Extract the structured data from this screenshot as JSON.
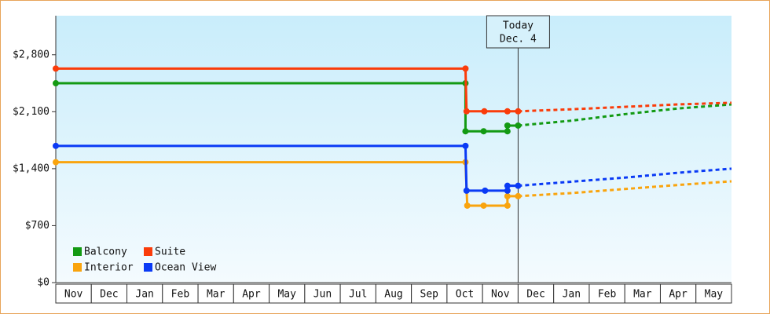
{
  "chart_data": {
    "type": "line",
    "categories": [
      "Nov",
      "Dec",
      "Jan",
      "Feb",
      "Mar",
      "Apr",
      "May",
      "Jun",
      "Jul",
      "Aug",
      "Sep",
      "Oct",
      "Nov",
      "Dec",
      "Jan",
      "Feb",
      "Mar",
      "Apr",
      "May"
    ],
    "xlim": [
      0,
      19
    ],
    "ylim": [
      0,
      3280
    ],
    "yticks": [
      {
        "value": 0,
        "label": "$0"
      },
      {
        "value": 700,
        "label": "$700"
      },
      {
        "value": 1400,
        "label": "$1,400"
      },
      {
        "value": 2100,
        "label": "$2,100"
      },
      {
        "value": 2800,
        "label": "$2,800"
      }
    ],
    "today": {
      "x": 13.0,
      "label": "Today",
      "date": "Dec. 4"
    },
    "legend": "bottom-left",
    "series": [
      {
        "name": "Balcony",
        "color": "#139a13",
        "x": [
          0,
          11.52,
          11.52,
          12.03,
          12.7,
          12.7,
          13.0
        ],
        "values": [
          2450,
          2450,
          1860,
          1860,
          1860,
          1930,
          1930
        ],
        "forecast_x": [
          13.0,
          14.5,
          16.0,
          17.5,
          19.0
        ],
        "forecast_values": [
          1930,
          1990,
          2070,
          2140,
          2190
        ]
      },
      {
        "name": "Suite",
        "color": "#fa3c0a",
        "x": [
          0,
          11.52,
          11.55,
          12.05,
          12.7,
          13.0
        ],
        "values": [
          2630,
          2630,
          2105,
          2105,
          2105,
          2105
        ],
        "forecast_x": [
          13.0,
          14.5,
          16.0,
          17.5,
          19.0
        ],
        "forecast_values": [
          2105,
          2130,
          2160,
          2190,
          2210
        ]
      },
      {
        "name": "Interior",
        "color": "#f9a40e",
        "x": [
          0,
          11.52,
          11.57,
          12.03,
          12.7,
          12.7,
          13.0
        ],
        "values": [
          1480,
          1480,
          946,
          946,
          946,
          1062,
          1062
        ],
        "forecast_x": [
          13.0,
          14.5,
          16.0,
          17.5,
          19.0
        ],
        "forecast_values": [
          1062,
          1100,
          1150,
          1200,
          1245
        ]
      },
      {
        "name": "Ocean View",
        "color": "#0a3af5",
        "x": [
          0,
          11.52,
          11.55,
          12.07,
          12.7,
          12.7,
          13.0
        ],
        "values": [
          1680,
          1680,
          1130,
          1130,
          1130,
          1190,
          1190
        ],
        "forecast_x": [
          13.0,
          14.5,
          16.0,
          17.5,
          19.0
        ],
        "forecast_values": [
          1190,
          1240,
          1290,
          1350,
          1400
        ]
      }
    ]
  }
}
